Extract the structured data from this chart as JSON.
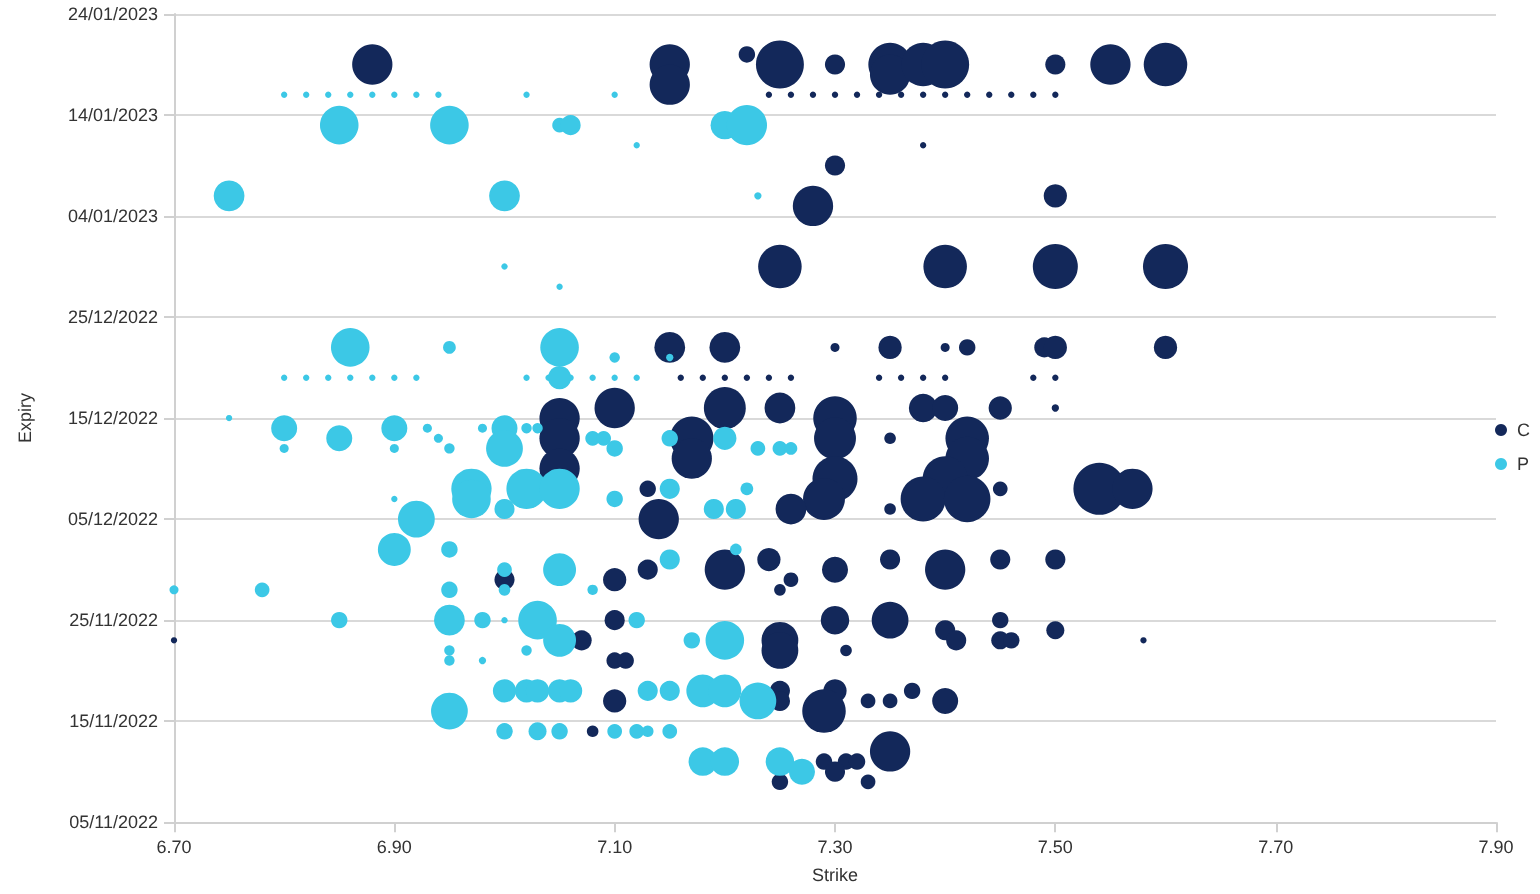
{
  "chart_data": {
    "type": "bubble",
    "xlabel": "Strike",
    "ylabel": "Expiry",
    "xlim": [
      6.7,
      7.9
    ],
    "xticks": [
      {
        "value": 6.7,
        "label": "6.70"
      },
      {
        "value": 6.9,
        "label": "6.90"
      },
      {
        "value": 7.1,
        "label": "7.10"
      },
      {
        "value": 7.3,
        "label": "7.30"
      },
      {
        "value": 7.5,
        "label": "7.50"
      },
      {
        "value": 7.7,
        "label": "7.70"
      },
      {
        "value": 7.9,
        "label": "7.90"
      }
    ],
    "ylim": [
      "2022-11-05",
      "2023-01-24"
    ],
    "yticks": [
      {
        "value": "2022-11-05",
        "label": "05/11/2022"
      },
      {
        "value": "2022-11-15",
        "label": "15/11/2022"
      },
      {
        "value": "2022-11-25",
        "label": "25/11/2022"
      },
      {
        "value": "2022-12-05",
        "label": "05/12/2022"
      },
      {
        "value": "2022-12-15",
        "label": "15/12/2022"
      },
      {
        "value": "2022-12-25",
        "label": "25/12/2022"
      },
      {
        "value": "2023-01-04",
        "label": "04/01/2023"
      },
      {
        "value": "2023-01-14",
        "label": "14/01/2023"
      },
      {
        "value": "2023-01-24",
        "label": "24/01/2023"
      }
    ],
    "grid": "y",
    "legend": "right",
    "marker": "circle",
    "orientation": "horizontal",
    "series": [
      {
        "name": "C",
        "color": "#13285a",
        "values": [
          6.88,
          7.15,
          7.15,
          7.22,
          7.25,
          7.3,
          7.35,
          7.35,
          7.38,
          7.4,
          7.5,
          7.55,
          7.6,
          7.24,
          7.26,
          7.28,
          7.3,
          7.32,
          7.34,
          7.36,
          7.38,
          7.4,
          7.42,
          7.44,
          7.46,
          7.48,
          7.5,
          7.38,
          7.3,
          7.28,
          7.5,
          7.25,
          7.4,
          7.5,
          7.6,
          7.15,
          7.2,
          7.3,
          7.35,
          7.4,
          7.42,
          7.49,
          7.5,
          7.6,
          7.16,
          7.18,
          7.2,
          7.22,
          7.24,
          7.26,
          7.34,
          7.36,
          7.38,
          7.4,
          7.48,
          7.5,
          7.1,
          7.2,
          7.25,
          7.38,
          7.4,
          7.45,
          7.5,
          7.05,
          7.3,
          7.05,
          7.17,
          7.3,
          7.42,
          7.35,
          7.17,
          7.42,
          7.05,
          7.3,
          7.4,
          7.13,
          7.45,
          7.54,
          7.57,
          7.29,
          7.38,
          7.42,
          7.26,
          7.35,
          7.14,
          7.24,
          7.35,
          7.45,
          7.5,
          7.13,
          7.2,
          7.3,
          7.4,
          7.0,
          7.1,
          7.26,
          7.25,
          7.3,
          7.35,
          7.45,
          7.1,
          7.4,
          7.5,
          7.25,
          7.41,
          7.45,
          7.46,
          7.58,
          7.07,
          6.7,
          7.25,
          7.31,
          7.1,
          7.11,
          7.3,
          7.25,
          7.37,
          7.25,
          7.33,
          7.35,
          7.4,
          7.1,
          7.29,
          7.08,
          7.35,
          7.29,
          7.31,
          7.32,
          7.3,
          7.25,
          7.33
        ],
        "x": [
          "2023-01-19",
          "2023-01-19",
          "2023-01-17",
          "2023-01-20",
          "2023-01-19",
          "2023-01-19",
          "2023-01-19",
          "2023-01-18",
          "2023-01-19",
          "2023-01-19",
          "2023-01-19",
          "2023-01-19",
          "2023-01-19",
          "2023-01-16",
          "2023-01-16",
          "2023-01-16",
          "2023-01-16",
          "2023-01-16",
          "2023-01-16",
          "2023-01-16",
          "2023-01-16",
          "2023-01-16",
          "2023-01-16",
          "2023-01-16",
          "2023-01-16",
          "2023-01-16",
          "2023-01-16",
          "2023-01-11",
          "2023-01-09",
          "2023-01-05",
          "2023-01-06",
          "2022-12-30",
          "2022-12-30",
          "2022-12-30",
          "2022-12-30",
          "2022-12-22",
          "2022-12-22",
          "2022-12-22",
          "2022-12-22",
          "2022-12-22",
          "2022-12-22",
          "2022-12-22",
          "2022-12-22",
          "2022-12-22",
          "2022-12-19",
          "2022-12-19",
          "2022-12-19",
          "2022-12-19",
          "2022-12-19",
          "2022-12-19",
          "2022-12-19",
          "2022-12-19",
          "2022-12-19",
          "2022-12-19",
          "2022-12-19",
          "2022-12-19",
          "2022-12-16",
          "2022-12-16",
          "2022-12-16",
          "2022-12-16",
          "2022-12-16",
          "2022-12-16",
          "2022-12-16",
          "2022-12-15",
          "2022-12-15",
          "2022-12-13",
          "2022-12-13",
          "2022-12-13",
          "2022-12-13",
          "2022-12-13",
          "2022-12-11",
          "2022-12-11",
          "2022-12-10",
          "2022-12-09",
          "2022-12-09",
          "2022-12-08",
          "2022-12-08",
          "2022-12-08",
          "2022-12-08",
          "2022-12-07",
          "2022-12-07",
          "2022-12-07",
          "2022-12-06",
          "2022-12-06",
          "2022-12-05",
          "2022-12-01",
          "2022-12-01",
          "2022-12-01",
          "2022-12-01",
          "2022-11-30",
          "2022-11-30",
          "2022-11-30",
          "2022-11-30",
          "2022-11-29",
          "2022-11-29",
          "2022-11-29",
          "2022-11-28",
          "2022-11-25",
          "2022-11-25",
          "2022-11-25",
          "2022-11-25",
          "2022-11-24",
          "2022-11-24",
          "2022-11-23",
          "2022-11-23",
          "2022-11-23",
          "2022-11-23",
          "2022-11-23",
          "2022-11-23",
          "2022-11-23",
          "2022-11-22",
          "2022-11-22",
          "2022-11-21",
          "2022-11-21",
          "2022-11-18",
          "2022-11-18",
          "2022-11-18",
          "2022-11-17",
          "2022-11-17",
          "2022-11-17",
          "2022-11-17",
          "2022-11-17",
          "2022-11-16",
          "2022-11-14",
          "2022-11-12",
          "2022-11-11",
          "2022-11-11",
          "2022-11-11",
          "2022-11-10",
          "2022-11-09",
          "2022-11-09"
        ],
        "sizes": [
          0.6,
          0.6,
          0.6,
          0.1,
          0.85,
          0.15,
          0.7,
          0.6,
          0.7,
          0.85,
          0.15,
          0.6,
          0.7,
          0.015,
          0.015,
          0.015,
          0.015,
          0.015,
          0.015,
          0.015,
          0.015,
          0.015,
          0.015,
          0.015,
          0.015,
          0.015,
          0.015,
          0.015,
          0.15,
          0.6,
          0.2,
          0.7,
          0.7,
          0.75,
          0.75,
          0.35,
          0.35,
          0.03,
          0.2,
          0.03,
          0.1,
          0.15,
          0.2,
          0.2,
          0.015,
          0.015,
          0.015,
          0.015,
          0.015,
          0.015,
          0.015,
          0.015,
          0.015,
          0.015,
          0.015,
          0.015,
          0.6,
          0.65,
          0.35,
          0.3,
          0.25,
          0.2,
          0.02,
          0.6,
          0.7,
          0.6,
          0.7,
          0.65,
          0.7,
          0.05,
          0.6,
          0.7,
          0.6,
          0.75,
          0.75,
          0.1,
          0.08,
          1,
          0.6,
          0.65,
          0.75,
          0.8,
          0.35,
          0.05,
          0.6,
          0.2,
          0.15,
          0.15,
          0.15,
          0.15,
          0.6,
          0.25,
          0.6,
          0.15,
          0.2,
          0.08,
          0.05,
          0.3,
          0.5,
          0.1,
          0.15,
          0.15,
          0.12,
          0.5,
          0.15,
          0.12,
          0.1,
          0.015,
          0.15,
          0.015,
          0.5,
          0.05,
          0.1,
          0.1,
          0.2,
          0.15,
          0.1,
          0.15,
          0.08,
          0.08,
          0.25,
          0.2,
          0.7,
          0.05,
          0.6,
          0.1,
          0.1,
          0.1,
          0.15,
          0.1,
          0.08
        ]
      },
      {
        "name": "P",
        "color": "#3cc8e6",
        "values": [
          6.8,
          6.82,
          6.84,
          6.86,
          6.88,
          6.9,
          6.92,
          6.94,
          7.02,
          7.1,
          6.85,
          6.95,
          7.05,
          7.06,
          7.2,
          7.22,
          7.12,
          6.75,
          7.0,
          7.23,
          7.0,
          7.05,
          6.86,
          6.95,
          7.05,
          7.1,
          7.15,
          6.8,
          6.82,
          6.84,
          6.86,
          6.88,
          6.9,
          6.92,
          7.02,
          7.04,
          7.06,
          7.08,
          7.1,
          7.12,
          7.05,
          6.75,
          6.8,
          6.9,
          6.93,
          6.98,
          7.0,
          7.02,
          7.03,
          6.85,
          6.94,
          7.08,
          7.09,
          7.2,
          7.15,
          6.8,
          6.9,
          6.95,
          7.0,
          7.1,
          7.23,
          7.25,
          7.26,
          6.97,
          7.02,
          7.05,
          7.15,
          7.22,
          6.97,
          7.1,
          6.9,
          7.0,
          7.19,
          7.21,
          6.92,
          6.9,
          6.95,
          7.21,
          7.15,
          7.05,
          7.0,
          6.7,
          6.78,
          6.95,
          7.08,
          7.0,
          6.85,
          6.95,
          6.98,
          7.0,
          7.03,
          7.12,
          7.05,
          7.2,
          7.17,
          6.95,
          7.02,
          6.95,
          6.98,
          7.0,
          7.02,
          7.03,
          7.05,
          7.06,
          7.18,
          7.2,
          7.13,
          7.15,
          7.23,
          6.95,
          7.0,
          7.03,
          7.05,
          7.1,
          7.12,
          7.15,
          7.13,
          7.18,
          7.2,
          7.25,
          7.27
        ],
        "x": [
          "2023-01-16",
          "2023-01-16",
          "2023-01-16",
          "2023-01-16",
          "2023-01-16",
          "2023-01-16",
          "2023-01-16",
          "2023-01-16",
          "2023-01-16",
          "2023-01-16",
          "2023-01-13",
          "2023-01-13",
          "2023-01-13",
          "2023-01-13",
          "2023-01-13",
          "2023-01-13",
          "2023-01-11",
          "2023-01-06",
          "2023-01-06",
          "2023-01-06",
          "2022-12-30",
          "2022-12-28",
          "2022-12-22",
          "2022-12-22",
          "2022-12-22",
          "2022-12-21",
          "2022-12-21",
          "2022-12-19",
          "2022-12-19",
          "2022-12-19",
          "2022-12-19",
          "2022-12-19",
          "2022-12-19",
          "2022-12-19",
          "2022-12-19",
          "2022-12-19",
          "2022-12-19",
          "2022-12-19",
          "2022-12-19",
          "2022-12-19",
          "2022-12-19",
          "2022-12-15",
          "2022-12-14",
          "2022-12-14",
          "2022-12-14",
          "2022-12-14",
          "2022-12-14",
          "2022-12-14",
          "2022-12-14",
          "2022-12-13",
          "2022-12-13",
          "2022-12-13",
          "2022-12-13",
          "2022-12-13",
          "2022-12-13",
          "2022-12-12",
          "2022-12-12",
          "2022-12-12",
          "2022-12-12",
          "2022-12-12",
          "2022-12-12",
          "2022-12-12",
          "2022-12-12",
          "2022-12-08",
          "2022-12-08",
          "2022-12-08",
          "2022-12-08",
          "2022-12-08",
          "2022-12-07",
          "2022-12-07",
          "2022-12-07",
          "2022-12-06",
          "2022-12-06",
          "2022-12-06",
          "2022-12-05",
          "2022-12-02",
          "2022-12-02",
          "2022-12-02",
          "2022-12-01",
          "2022-11-30",
          "2022-11-30",
          "2022-11-28",
          "2022-11-28",
          "2022-11-28",
          "2022-11-28",
          "2022-11-28",
          "2022-11-25",
          "2022-11-25",
          "2022-11-25",
          "2022-11-25",
          "2022-11-25",
          "2022-11-25",
          "2022-11-23",
          "2022-11-23",
          "2022-11-23",
          "2022-11-22",
          "2022-11-22",
          "2022-11-21",
          "2022-11-21",
          "2022-11-18",
          "2022-11-18",
          "2022-11-18",
          "2022-11-18",
          "2022-11-18",
          "2022-11-18",
          "2022-11-18",
          "2022-11-18",
          "2022-11-18",
          "2022-11-17",
          "2022-11-16",
          "2022-11-14",
          "2022-11-14",
          "2022-11-14",
          "2022-11-14",
          "2022-11-14",
          "2022-11-14",
          "2022-11-14",
          "2022-11-11",
          "2022-11-11",
          "2022-11-11",
          "2022-11-10"
        ],
        "sizes": [
          0.015,
          0.015,
          0.015,
          0.015,
          0.015,
          0.015,
          0.015,
          0.015,
          0.015,
          0.015,
          0.55,
          0.55,
          0.08,
          0.15,
          0.3,
          0.6,
          0.015,
          0.35,
          0.35,
          0.02,
          0.015,
          0.015,
          0.55,
          0.06,
          0.55,
          0.04,
          0.02,
          0.015,
          0.015,
          0.015,
          0.015,
          0.015,
          0.015,
          0.015,
          0.015,
          0.015,
          0.015,
          0.015,
          0.015,
          0.015,
          0.2,
          0.015,
          0.25,
          0.25,
          0.03,
          0.03,
          0.25,
          0.04,
          0.04,
          0.25,
          0.03,
          0.08,
          0.08,
          0.2,
          0.1,
          0.03,
          0.03,
          0.04,
          0.5,
          0.1,
          0.08,
          0.08,
          0.06,
          0.6,
          0.6,
          0.6,
          0.15,
          0.06,
          0.55,
          0.1,
          0.015,
          0.15,
          0.15,
          0.15,
          0.5,
          0.4,
          0.1,
          0.05,
          0.15,
          0.4,
          0.08,
          0.03,
          0.08,
          0.1,
          0.04,
          0.05,
          0.1,
          0.35,
          0.1,
          0.015,
          0.55,
          0.1,
          0.4,
          0.55,
          0.1,
          0.04,
          0.04,
          0.04,
          0.02,
          0.2,
          0.2,
          0.2,
          0.2,
          0.2,
          0.4,
          0.4,
          0.15,
          0.15,
          0.5,
          0.5,
          0.1,
          0.12,
          0.1,
          0.08,
          0.08,
          0.08,
          0.05,
          0.3,
          0.3,
          0.3,
          0.25
        ]
      }
    ]
  }
}
